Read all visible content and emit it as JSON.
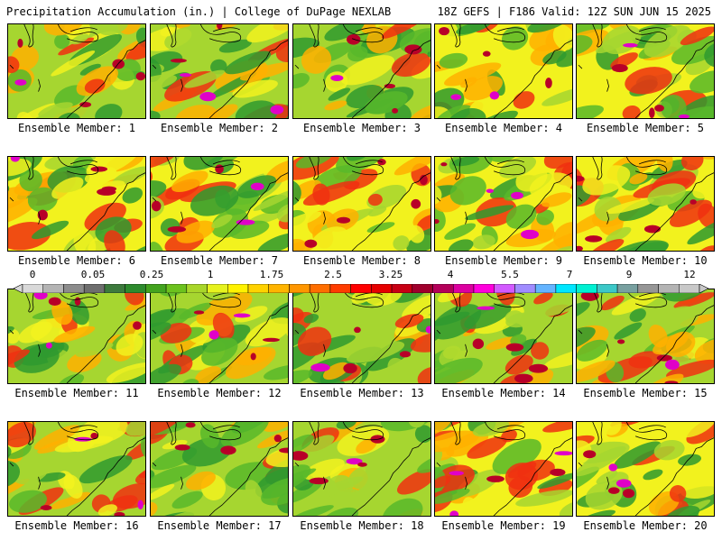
{
  "header": {
    "left": "Precipitation Accumulation (in.) | College of DuPage NEXLAB",
    "right": "18Z GEFS | F186 Valid: 12Z SUN JUN 15 2025"
  },
  "legend": {
    "tick_labels": [
      "0",
      "0.05",
      "0.25",
      "1",
      "1.75",
      "2.5",
      "3.25",
      "4",
      "5.5",
      "7",
      "9",
      "12"
    ],
    "colors": [
      "#d9d9d9",
      "#b4b4b4",
      "#8c8c8c",
      "#6e6e6e",
      "#3d7a3d",
      "#2e8b2e",
      "#43a31f",
      "#6cc21e",
      "#a8d62a",
      "#e6f21e",
      "#fff200",
      "#ffd200",
      "#ffb400",
      "#ff9600",
      "#ff6e00",
      "#ff3c00",
      "#ff0000",
      "#e60000",
      "#c80014",
      "#a0002d",
      "#b4005a",
      "#dc00a0",
      "#ff00dc",
      "#d25aff",
      "#a08cff",
      "#64b4ff",
      "#00e6ff",
      "#00f0d2",
      "#3cc8c8",
      "#78a0a0",
      "#969696",
      "#b4b4b4",
      "#c8c8c8"
    ]
  },
  "members": [
    {
      "label": "Ensemble Member: 1"
    },
    {
      "label": "Ensemble Member: 2"
    },
    {
      "label": "Ensemble Member: 3"
    },
    {
      "label": "Ensemble Member: 4"
    },
    {
      "label": "Ensemble Member: 5"
    },
    {
      "label": "Ensemble Member: 6"
    },
    {
      "label": "Ensemble Member: 7"
    },
    {
      "label": "Ensemble Member: 8"
    },
    {
      "label": "Ensemble Member: 9"
    },
    {
      "label": "Ensemble Member: 10"
    },
    {
      "label": "Ensemble Member: 11"
    },
    {
      "label": "Ensemble Member: 12"
    },
    {
      "label": "Ensemble Member: 13"
    },
    {
      "label": "Ensemble Member: 14"
    },
    {
      "label": "Ensemble Member: 15"
    },
    {
      "label": "Ensemble Member: 16"
    },
    {
      "label": "Ensemble Member: 17"
    },
    {
      "label": "Ensemble Member: 18"
    },
    {
      "label": "Ensemble Member: 19"
    },
    {
      "label": "Ensemble Member: 20"
    }
  ],
  "map_colors": {
    "dark_green": "#2f9a2f",
    "green": "#58b82a",
    "light_green": "#a6d630",
    "yellow": "#f2f21e",
    "orange": "#ffb000",
    "red": "#f03010",
    "dark_red": "#b80028",
    "magenta": "#e000c8",
    "violet": "#c070ff",
    "cyan": "#30e0f0",
    "gray": "#909090"
  }
}
